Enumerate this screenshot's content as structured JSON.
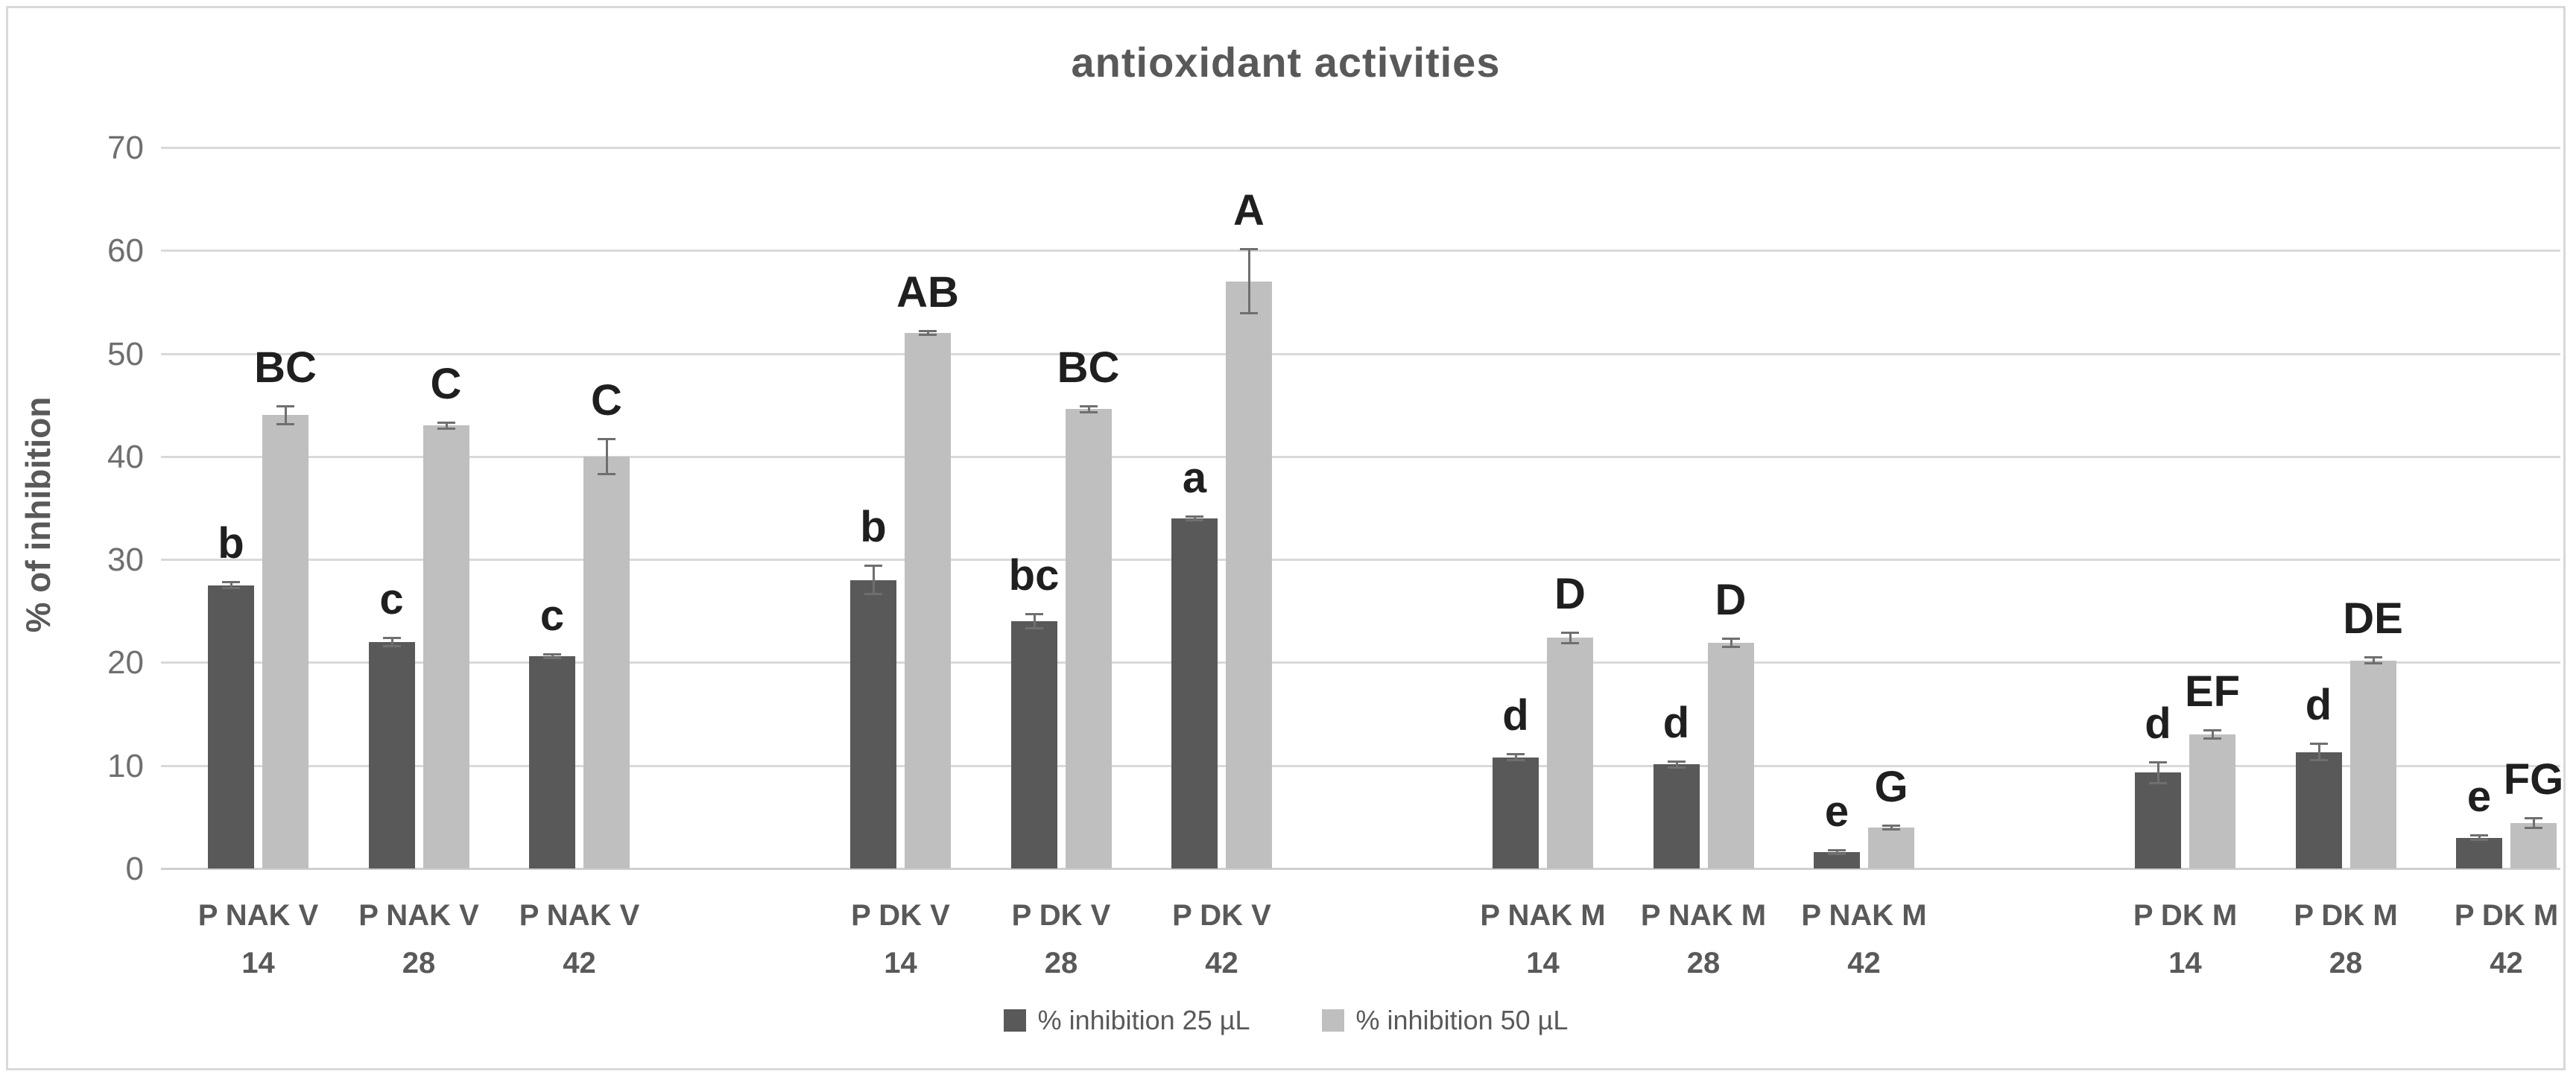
{
  "chart_data": {
    "type": "bar",
    "title": "antioxidant activities",
    "ylabel": "% of inhibition",
    "ylim": [
      0,
      70
    ],
    "yticks": [
      0,
      10,
      20,
      30,
      40,
      50,
      60,
      70
    ],
    "grid": true,
    "legend_position": "bottom-center",
    "categories": [
      {
        "label": "P NAK V",
        "day": "14",
        "cluster": 0
      },
      {
        "label": "P NAK V",
        "day": "28",
        "cluster": 0
      },
      {
        "label": "P NAK V",
        "day": "42",
        "cluster": 0
      },
      {
        "label": "P DK V",
        "day": "14",
        "cluster": 1
      },
      {
        "label": "P DK V",
        "day": "28",
        "cluster": 1
      },
      {
        "label": "P DK V",
        "day": "42",
        "cluster": 1
      },
      {
        "label": "P NAK M",
        "day": "14",
        "cluster": 2
      },
      {
        "label": "P NAK M",
        "day": "28",
        "cluster": 2
      },
      {
        "label": "P NAK M",
        "day": "42",
        "cluster": 2
      },
      {
        "label": "P DK M",
        "day": "14",
        "cluster": 3
      },
      {
        "label": "P DK M",
        "day": "28",
        "cluster": 3
      },
      {
        "label": "P DK M",
        "day": "42",
        "cluster": 3
      }
    ],
    "series": [
      {
        "name": "% inhibition 25 µL",
        "color": "#595959",
        "values": [
          27.5,
          22.0,
          20.6,
          28.0,
          24.0,
          34.0,
          10.8,
          10.1,
          1.6,
          9.3,
          11.3,
          3.0
        ],
        "errors": [
          0.4,
          0.5,
          0.3,
          1.5,
          0.8,
          0.3,
          0.4,
          0.4,
          0.3,
          1.1,
          0.9,
          0.3
        ],
        "letters": [
          "b",
          "c",
          "c",
          "b",
          "bc",
          "a",
          "d",
          "d",
          "e",
          "d",
          "d",
          "e"
        ]
      },
      {
        "name": "% inhibition 50 µL",
        "color": "#bfbfbf",
        "values": [
          44.0,
          43.0,
          40.0,
          52.0,
          44.6,
          57.0,
          22.4,
          21.9,
          4.0,
          13.0,
          20.2,
          4.4
        ],
        "errors": [
          1.0,
          0.4,
          1.8,
          0.3,
          0.4,
          3.2,
          0.6,
          0.5,
          0.3,
          0.5,
          0.4,
          0.6
        ],
        "letters": [
          "BC",
          "C",
          "C",
          "AB",
          "BC",
          "A",
          "D",
          "D",
          "G",
          "EF",
          "DE",
          "FG"
        ]
      }
    ],
    "colors": {
      "grid": "#d9d9d9",
      "axis_text": "#6f6f6f",
      "label_text": "#595959",
      "letter_text": "#1f1f1f",
      "error_bar": "#6f6f6f",
      "frame_border": "#d9d9d9",
      "background": "#ffffff"
    }
  }
}
